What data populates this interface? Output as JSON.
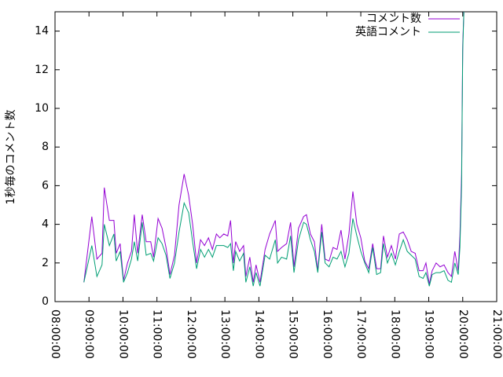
{
  "chart_data": {
    "type": "line",
    "ylabel": "1秒毎のコメント数",
    "x": [
      "08:51:00",
      "09:05:00",
      "09:14:00",
      "09:23:00",
      "09:27:00",
      "09:36:00",
      "09:44:00",
      "09:48:00",
      "09:55:00",
      "10:01:00",
      "10:08:00",
      "10:15:00",
      "10:20:00",
      "10:26:00",
      "10:34:00",
      "10:41:00",
      "10:49:00",
      "10:54:00",
      "11:02:00",
      "11:09:00",
      "11:16:00",
      "11:23:00",
      "11:31:00",
      "11:39:00",
      "11:48:00",
      "11:56:00",
      "12:03:00",
      "12:10:00",
      "12:17:00",
      "12:24:00",
      "12:31:00",
      "12:38:00",
      "12:45:00",
      "12:51:00",
      "12:58:00",
      "13:05:00",
      "13:10:00",
      "13:15:00",
      "13:19:00",
      "13:26:00",
      "13:33:00",
      "13:37:00",
      "13:44:00",
      "13:50:00",
      "13:55:00",
      "14:02:00",
      "14:11:00",
      "14:19:00",
      "14:29:00",
      "14:33:00",
      "14:40:00",
      "14:49:00",
      "14:56:00",
      "15:02:00",
      "15:10:00",
      "15:19:00",
      "15:24:00",
      "15:31:00",
      "15:38:00",
      "15:44:00",
      "15:51:00",
      "15:57:00",
      "16:04:00",
      "16:11:00",
      "16:18:00",
      "16:25:00",
      "16:32:00",
      "16:39:00",
      "16:46:00",
      "16:53:00",
      "17:00:00",
      "17:07:00",
      "17:14:00",
      "17:21:00",
      "17:28:00",
      "17:35:00",
      "17:40:00",
      "17:47:00",
      "17:54:00",
      "18:01:00",
      "18:08:00",
      "18:15:00",
      "18:22:00",
      "18:29:00",
      "18:36:00",
      "18:43:00",
      "18:50:00",
      "18:55:00",
      "19:01:00",
      "19:06:00",
      "19:13:00",
      "19:20:00",
      "19:27:00",
      "19:34:00",
      "19:40:00",
      "19:46:00",
      "19:52:00",
      "19:55:00",
      "19:58:00",
      "19:59:00",
      "20:00:00",
      "20:02:00"
    ],
    "series": [
      {
        "name": "コメント数",
        "color": "#9400d3",
        "values": [
          1.0,
          4.4,
          2.2,
          2.5,
          5.9,
          4.2,
          4.2,
          2.5,
          3.0,
          1.1,
          2.0,
          2.6,
          4.5,
          2.5,
          4.5,
          3.1,
          3.1,
          2.3,
          4.3,
          3.8,
          2.8,
          1.4,
          2.4,
          5.0,
          6.6,
          5.5,
          4.0,
          2.0,
          3.2,
          2.9,
          3.3,
          2.7,
          3.5,
          3.3,
          3.5,
          3.4,
          4.2,
          2.0,
          3.1,
          2.6,
          2.9,
          1.3,
          2.3,
          1.0,
          1.9,
          1.0,
          2.7,
          3.5,
          4.2,
          2.6,
          2.8,
          3.0,
          4.1,
          1.8,
          3.8,
          4.4,
          4.5,
          3.5,
          3.1,
          1.6,
          4.0,
          2.2,
          2.1,
          2.8,
          2.7,
          3.7,
          2.2,
          3.5,
          5.7,
          4.0,
          3.3,
          2.1,
          1.7,
          3.0,
          1.7,
          1.7,
          3.4,
          2.3,
          2.9,
          2.2,
          3.5,
          3.6,
          3.2,
          2.6,
          2.5,
          1.6,
          1.6,
          2.0,
          0.9,
          1.6,
          2.0,
          1.8,
          1.9,
          1.5,
          1.3,
          2.6,
          1.6,
          3.4,
          6.6,
          10.0,
          13.3,
          15
        ]
      },
      {
        "name": "英語コメント",
        "color": "#009e73",
        "values": [
          1.0,
          2.9,
          1.3,
          1.9,
          4.0,
          2.9,
          3.5,
          2.1,
          2.6,
          1.0,
          1.5,
          2.2,
          3.1,
          2.1,
          4.1,
          2.4,
          2.5,
          2.1,
          3.3,
          3.0,
          2.4,
          1.2,
          2.0,
          3.6,
          5.1,
          4.6,
          3.1,
          1.7,
          2.7,
          2.3,
          2.7,
          2.3,
          2.9,
          2.9,
          2.9,
          2.8,
          3.0,
          1.6,
          2.6,
          2.1,
          2.5,
          1.0,
          1.8,
          0.8,
          1.5,
          0.8,
          2.4,
          2.2,
          3.2,
          2.0,
          2.3,
          2.2,
          3.4,
          1.5,
          3.2,
          4.1,
          4.0,
          3.2,
          2.6,
          1.5,
          3.6,
          2.0,
          1.8,
          2.3,
          2.2,
          2.6,
          1.8,
          2.5,
          4.3,
          3.4,
          2.6,
          2.0,
          1.5,
          2.8,
          1.4,
          1.5,
          3.0,
          2.0,
          2.5,
          1.9,
          2.6,
          3.2,
          2.6,
          2.4,
          2.2,
          1.3,
          1.2,
          1.5,
          0.8,
          1.4,
          1.5,
          1.5,
          1.6,
          1.1,
          1.0,
          2.0,
          1.4,
          2.8,
          6.0,
          9.7,
          13.0,
          15
        ]
      }
    ],
    "xlim": [
      "08:00:00",
      "21:00:00"
    ],
    "xticks": [
      "08:00:00",
      "09:00:00",
      "10:00:00",
      "11:00:00",
      "12:00:00",
      "13:00:00",
      "14:00:00",
      "15:00:00",
      "16:00:00",
      "17:00:00",
      "18:00:00",
      "19:00:00",
      "20:00:00",
      "21:00:00"
    ],
    "ylim": [
      0,
      15
    ],
    "yticks": [
      0,
      2,
      4,
      6,
      8,
      10,
      12,
      14
    ],
    "legend": "top-right"
  }
}
